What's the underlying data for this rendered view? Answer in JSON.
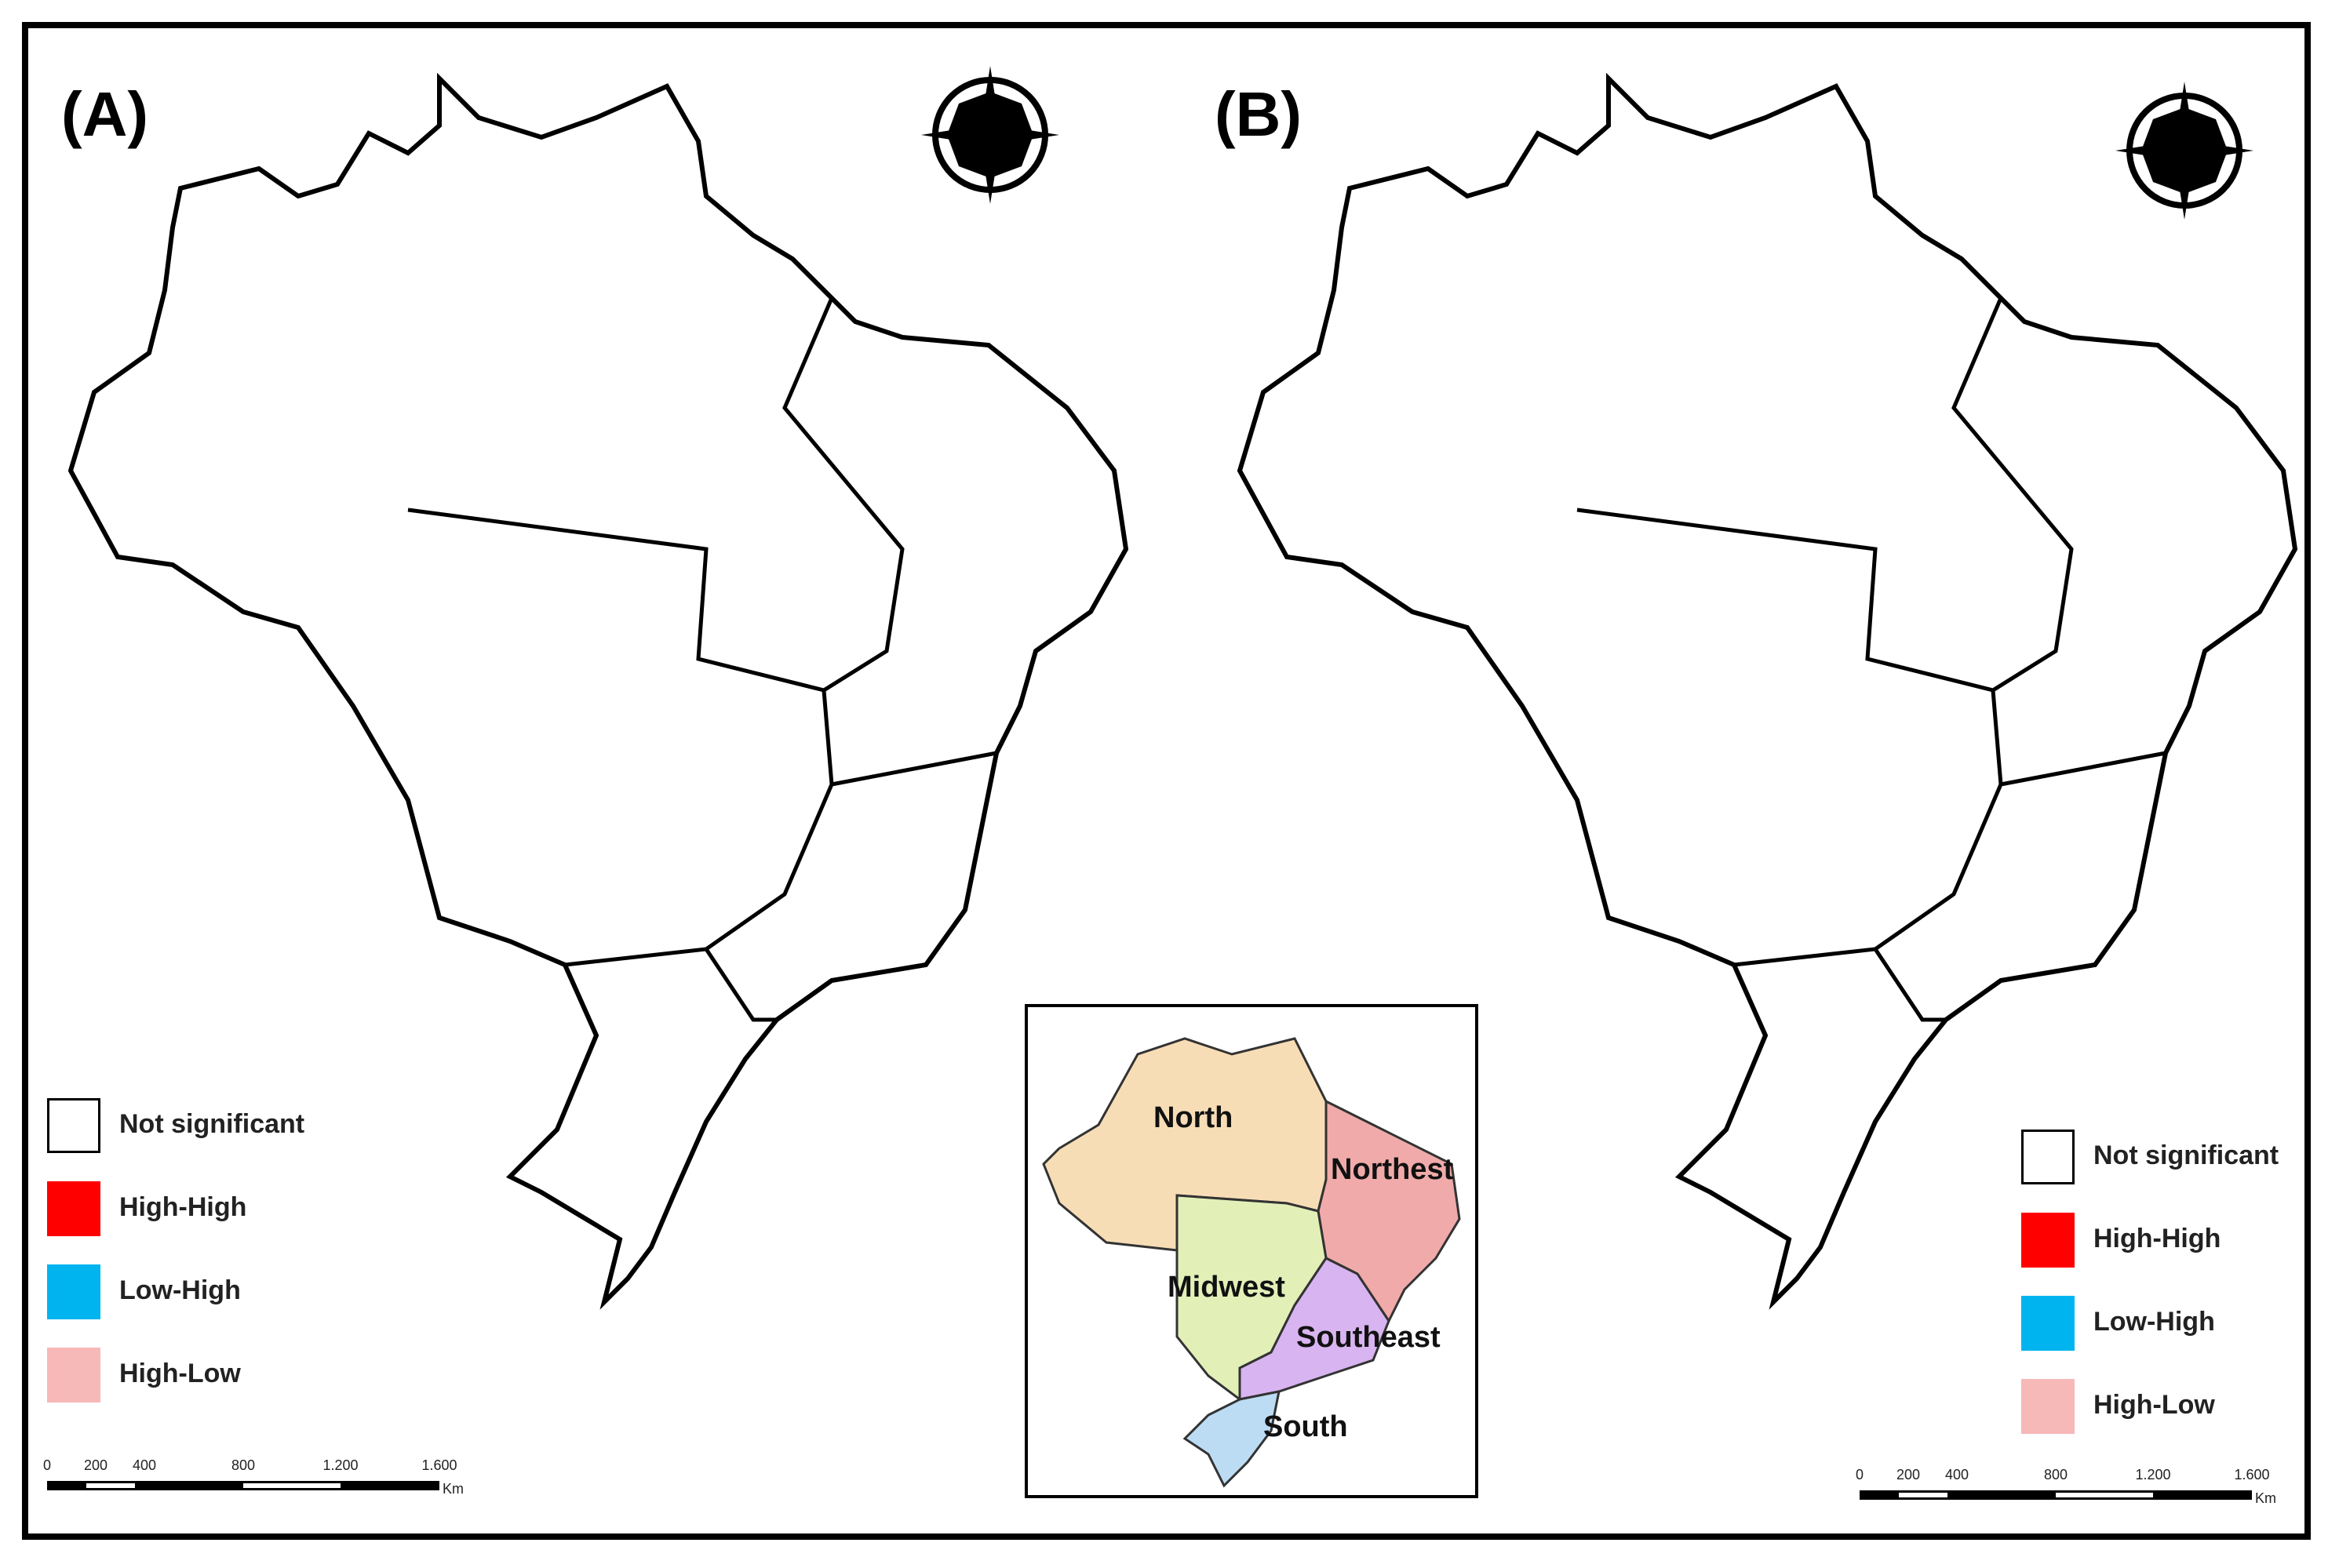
{
  "panels": [
    {
      "id": "A",
      "label": "(A)"
    },
    {
      "id": "B",
      "label": "(B)"
    }
  ],
  "legend": {
    "items": [
      {
        "label": "Not significant",
        "color": "#ffffff"
      },
      {
        "label": "High-High",
        "color": "#ff0000"
      },
      {
        "label": "Low-High",
        "color": "#00b4ef"
      },
      {
        "label": "High-Low",
        "color": "#f7b8b8"
      }
    ]
  },
  "scalebar": {
    "ticks": [
      "0",
      "200",
      "400",
      "800",
      "1.200",
      "1.600"
    ],
    "unit": "Km"
  },
  "inset": {
    "regions": [
      {
        "name": "North",
        "color": "#f7ddb6"
      },
      {
        "name": "Northest",
        "color": "#f0aaaa"
      },
      {
        "name": "Midwest",
        "color": "#e2f0b8"
      },
      {
        "name": "Southeast",
        "color": "#d8b4f0"
      },
      {
        "name": "South",
        "color": "#bcdcf4"
      }
    ]
  },
  "icons": {
    "north_arrow": "compass-rose-icon"
  }
}
